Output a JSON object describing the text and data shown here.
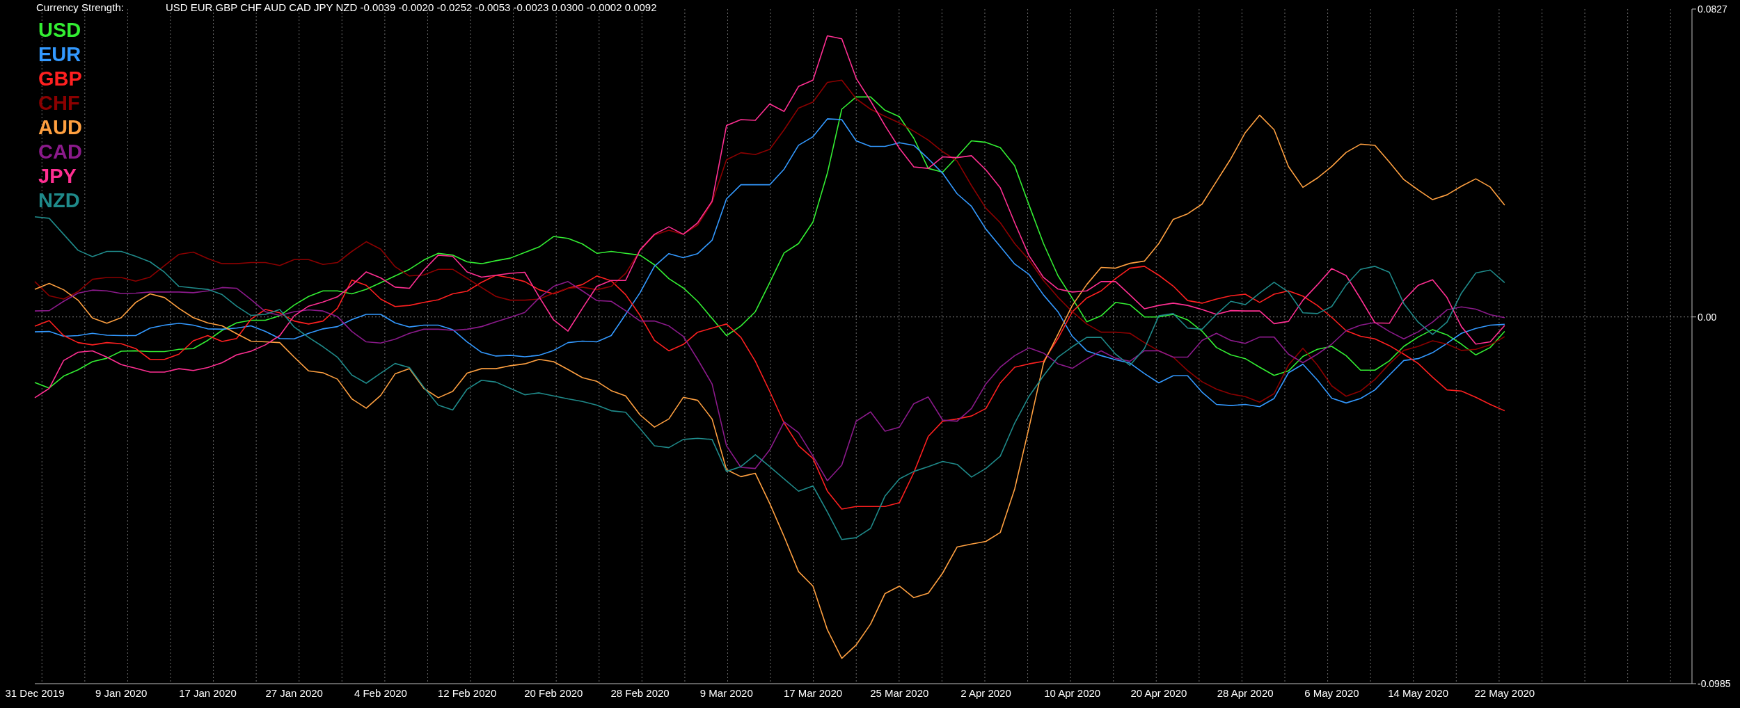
{
  "chart_data": {
    "type": "line",
    "title": "Currency Strength:",
    "subtitle": "USD EUR GBP CHF AUD CAD JPY NZD -0.0039 -0.0020 -0.0252 -0.0053 -0.0023 0.0300 -0.0002 0.0092",
    "categories": [
      "31 Dec 2019",
      null,
      null,
      null,
      null,
      null,
      "9 Jan 2020",
      null,
      null,
      null,
      null,
      null,
      "17 Jan 2020",
      null,
      null,
      null,
      null,
      null,
      "27 Jan 2020",
      null,
      null,
      null,
      null,
      null,
      "4 Feb 2020",
      null,
      null,
      null,
      null,
      null,
      "12 Feb 2020",
      null,
      null,
      null,
      null,
      null,
      "20 Feb 2020",
      null,
      null,
      null,
      null,
      null,
      "28 Feb 2020",
      null,
      null,
      null,
      null,
      null,
      "9 Mar 2020",
      null,
      null,
      null,
      null,
      null,
      "17 Mar 2020",
      null,
      null,
      null,
      null,
      null,
      "25 Mar 2020",
      null,
      null,
      null,
      null,
      null,
      "2 Apr 2020",
      null,
      null,
      null,
      null,
      null,
      "10 Apr 2020",
      null,
      null,
      null,
      null,
      null,
      "20 Apr 2020",
      null,
      null,
      null,
      null,
      null,
      "28 Apr 2020",
      null,
      null,
      null,
      null,
      null,
      "6 May 2020",
      null,
      null,
      null,
      null,
      null,
      "14 May 2020",
      null,
      null,
      null,
      null,
      null,
      "22 May 2020",
      null,
      null,
      null,
      null,
      null,
      null,
      null,
      null,
      null,
      null,
      null,
      null,
      null
    ],
    "series": [
      {
        "name": "USD",
        "color": "#33ee33",
        "values": [
          -0.0176,
          -0.0191,
          -0.0159,
          -0.0142,
          -0.012,
          -0.0111,
          -0.0092,
          -0.0091,
          -0.0093,
          -0.0093,
          -0.0087,
          -0.0085,
          -0.0063,
          -0.0036,
          -0.0016,
          -0.0009,
          -0.0009,
          0.0003,
          0.0032,
          0.0055,
          0.007,
          0.007,
          0.0062,
          0.0074,
          0.0092,
          0.011,
          0.0128,
          0.0153,
          0.0171,
          0.0166,
          0.0148,
          0.0143,
          0.0151,
          0.0158,
          0.0173,
          0.0188,
          0.0216,
          0.0211,
          0.0196,
          0.0171,
          0.0176,
          0.0171,
          0.0166,
          0.014,
          0.0103,
          0.0078,
          0.0042,
          -0.0004,
          -0.005,
          -0.0024,
          0.0014,
          0.0092,
          0.0172,
          0.0197,
          0.0255,
          0.0386,
          0.0558,
          0.0591,
          0.0591,
          0.0555,
          0.0538,
          0.048,
          0.0399,
          0.0389,
          0.043,
          0.0473,
          0.0469,
          0.0455,
          0.0406,
          0.03,
          0.0197,
          0.0111,
          0.005,
          -0.0013,
          0.0003,
          0.0039,
          0.0033,
          0.0,
          0.0,
          0.0007,
          -0.0008,
          -0.0038,
          -0.0082,
          -0.0102,
          -0.0112,
          -0.0135,
          -0.0157,
          -0.0145,
          -0.0106,
          -0.0087,
          -0.0079,
          -0.0104,
          -0.0143,
          -0.0143,
          -0.0118,
          -0.0079,
          -0.0054,
          -0.0034,
          -0.0048,
          -0.0073,
          -0.0102,
          -0.0082,
          -0.0039,
          null,
          null,
          null,
          null,
          null,
          null,
          null,
          null,
          null,
          null,
          null,
          null,
          null
        ]
      },
      {
        "name": "EUR",
        "color": "#3399ff",
        "values": [
          -0.004,
          -0.0039,
          -0.0052,
          -0.005,
          -0.0044,
          -0.0049,
          -0.005,
          -0.005,
          -0.003,
          -0.0022,
          -0.0017,
          -0.0022,
          -0.0032,
          -0.0033,
          -0.003,
          -0.0024,
          -0.0039,
          -0.0058,
          -0.0059,
          -0.0044,
          -0.0032,
          -0.0026,
          -0.0007,
          0.0007,
          0.0007,
          -0.0016,
          -0.0027,
          -0.0022,
          -0.0022,
          -0.0034,
          -0.0067,
          -0.0095,
          -0.0105,
          -0.0103,
          -0.0107,
          -0.0103,
          -0.009,
          -0.0069,
          -0.0065,
          -0.0067,
          -0.005,
          0.0007,
          0.0065,
          0.0136,
          0.017,
          0.0159,
          0.017,
          0.0206,
          0.0317,
          0.0355,
          0.0355,
          0.0355,
          0.0397,
          0.0461,
          0.0484,
          0.0532,
          0.053,
          0.0473,
          0.0458,
          0.0458,
          0.0468,
          0.0461,
          0.0425,
          0.0386,
          0.0331,
          0.0297,
          0.0236,
          0.0189,
          0.0142,
          0.0114,
          0.0059,
          0.0014,
          -0.0052,
          -0.0091,
          -0.0104,
          -0.0115,
          -0.0124,
          -0.0152,
          -0.0177,
          -0.0158,
          -0.0158,
          -0.0202,
          -0.0235,
          -0.0238,
          -0.0235,
          -0.0241,
          -0.0219,
          -0.015,
          -0.0127,
          -0.0169,
          -0.0218,
          -0.0231,
          -0.0219,
          -0.0196,
          -0.0156,
          -0.0117,
          -0.0112,
          -0.0096,
          -0.0071,
          -0.0044,
          -0.0031,
          -0.0022,
          -0.002,
          null,
          null,
          null,
          null,
          null,
          null,
          null,
          null,
          null,
          null,
          null,
          null,
          null
        ]
      },
      {
        "name": "GBP",
        "color": "#ff2020",
        "values": [
          -0.0025,
          -0.001,
          -0.005,
          -0.0069,
          -0.0075,
          -0.0069,
          -0.0072,
          -0.0085,
          -0.0114,
          -0.0114,
          -0.01,
          -0.0064,
          -0.005,
          -0.0066,
          -0.0058,
          -0.0006,
          0.002,
          0.0011,
          -0.0011,
          -0.0019,
          -0.0011,
          0.0023,
          0.0099,
          0.0085,
          0.0048,
          0.0028,
          0.0031,
          0.0039,
          0.0046,
          0.0062,
          0.0069,
          0.0093,
          0.0112,
          0.0105,
          0.0095,
          0.0073,
          0.0062,
          0.0077,
          0.0087,
          0.011,
          0.0097,
          0.006,
          0.0004,
          -0.0063,
          -0.0091,
          -0.0074,
          -0.0041,
          -0.003,
          -0.0019,
          -0.0055,
          -0.0119,
          -0.02,
          -0.0285,
          -0.0346,
          -0.038,
          -0.0468,
          -0.0516,
          -0.0509,
          -0.0509,
          -0.0509,
          -0.0499,
          -0.0418,
          -0.0321,
          -0.028,
          -0.0274,
          -0.0266,
          -0.0246,
          -0.0177,
          -0.0135,
          -0.0126,
          -0.0119,
          -0.0058,
          0.0014,
          0.0051,
          0.007,
          0.0103,
          0.0131,
          0.0136,
          0.0112,
          0.0083,
          0.0044,
          0.0037,
          0.0048,
          0.0057,
          0.0061,
          0.0039,
          0.0061,
          0.007,
          0.0056,
          0.0031,
          -0.0001,
          -0.0037,
          -0.0052,
          -0.0059,
          -0.0077,
          -0.01,
          -0.0125,
          -0.0162,
          -0.0196,
          -0.0199,
          -0.0216,
          -0.0235,
          -0.0252,
          null,
          null,
          null,
          null,
          null,
          null,
          null,
          null,
          null,
          null,
          null,
          null,
          null
        ]
      },
      {
        "name": "CHF",
        "color": "#8b0000",
        "values": [
          0.0095,
          0.0057,
          0.0048,
          0.0068,
          0.0101,
          0.0106,
          0.0106,
          0.0096,
          0.0107,
          0.0138,
          0.0168,
          0.0174,
          0.0157,
          0.0143,
          0.0143,
          0.0146,
          0.0146,
          0.0138,
          0.0154,
          0.0154,
          0.0141,
          0.0146,
          0.0176,
          0.0202,
          0.0182,
          0.0135,
          0.011,
          0.0113,
          0.0128,
          0.0128,
          0.0104,
          0.0079,
          0.0055,
          0.0045,
          0.0045,
          0.0048,
          0.0064,
          0.0077,
          0.008,
          0.0073,
          0.0082,
          0.0117,
          0.0179,
          0.022,
          0.0233,
          0.0222,
          0.0247,
          0.0308,
          0.0422,
          0.0441,
          0.0436,
          0.045,
          0.0503,
          0.0561,
          0.0577,
          0.063,
          0.0636,
          0.0586,
          0.0558,
          0.0539,
          0.0521,
          0.0499,
          0.0475,
          0.0444,
          0.0419,
          0.0353,
          0.0292,
          0.0253,
          0.0197,
          0.0153,
          0.0098,
          0.0053,
          0.0014,
          -0.0019,
          -0.0041,
          -0.0041,
          -0.0044,
          -0.0069,
          -0.0091,
          -0.0108,
          -0.0144,
          -0.0174,
          -0.0194,
          -0.0207,
          -0.0214,
          -0.0229,
          -0.0206,
          -0.0129,
          -0.0084,
          -0.0129,
          -0.0185,
          -0.0213,
          -0.0199,
          -0.0168,
          -0.0126,
          -0.009,
          -0.0079,
          -0.0064,
          -0.0073,
          -0.009,
          -0.0087,
          -0.0075,
          -0.0053,
          null,
          null,
          null,
          null,
          null,
          null,
          null,
          null,
          null,
          null,
          null,
          null,
          null
        ]
      },
      {
        "name": "AUD",
        "color": "#ffa040",
        "values": [
          0.0074,
          0.009,
          0.0073,
          0.0045,
          -0.0003,
          -0.0017,
          -0.0002,
          0.0039,
          0.0062,
          0.0052,
          0.0023,
          -0.0002,
          -0.0016,
          -0.0024,
          -0.0045,
          -0.0065,
          -0.0067,
          -0.0069,
          -0.0108,
          -0.0145,
          -0.015,
          -0.0167,
          -0.022,
          -0.0245,
          -0.0211,
          -0.0153,
          -0.0139,
          -0.0192,
          -0.0217,
          -0.02,
          -0.0151,
          -0.0139,
          -0.0139,
          -0.0131,
          -0.0126,
          -0.0114,
          -0.012,
          -0.0141,
          -0.0163,
          -0.0173,
          -0.0198,
          -0.0212,
          -0.0263,
          -0.0296,
          -0.0274,
          -0.0216,
          -0.0224,
          -0.0274,
          -0.041,
          -0.0429,
          -0.042,
          -0.0501,
          -0.059,
          -0.0684,
          -0.0723,
          -0.084,
          -0.0917,
          -0.0881,
          -0.0825,
          -0.0743,
          -0.0723,
          -0.0754,
          -0.0742,
          -0.0688,
          -0.0618,
          -0.061,
          -0.0603,
          -0.0579,
          -0.0462,
          -0.0296,
          -0.0124,
          -0.0047,
          0.0031,
          0.0087,
          0.0133,
          0.0131,
          0.0144,
          0.015,
          0.0197,
          0.0262,
          0.0277,
          0.0303,
          0.0364,
          0.0425,
          0.0495,
          0.0542,
          0.0503,
          0.0404,
          0.0348,
          0.0373,
          0.0404,
          0.0442,
          0.0464,
          0.0461,
          0.0416,
          0.0369,
          0.0341,
          0.0315,
          0.0328,
          0.0351,
          0.0371,
          0.0349,
          0.03,
          null,
          null,
          null,
          null,
          null,
          null,
          null,
          null,
          null,
          null,
          null,
          null,
          null
        ]
      },
      {
        "name": "CAD",
        "color": "#8b1a8b",
        "values": [
          0.0016,
          0.0017,
          0.0042,
          0.0064,
          0.0072,
          0.007,
          0.0063,
          0.0064,
          0.0067,
          0.0067,
          0.0067,
          0.0065,
          0.007,
          0.0079,
          0.0077,
          0.0047,
          0.0014,
          0.0004,
          0.0014,
          0.0019,
          0.0016,
          0.0001,
          -0.0039,
          -0.0067,
          -0.007,
          -0.006,
          -0.0044,
          -0.0033,
          -0.0033,
          -0.0036,
          -0.0033,
          -0.0026,
          -0.0013,
          -0.0001,
          0.0012,
          0.0051,
          0.0082,
          0.0095,
          0.007,
          0.0044,
          0.0042,
          0.0017,
          -0.0011,
          -0.0011,
          -0.0024,
          -0.0052,
          -0.0114,
          -0.018,
          -0.0346,
          -0.0404,
          -0.0407,
          -0.0357,
          -0.0282,
          -0.0311,
          -0.0374,
          -0.044,
          -0.0398,
          -0.028,
          -0.0255,
          -0.0307,
          -0.0296,
          -0.0233,
          -0.0215,
          -0.0277,
          -0.028,
          -0.0246,
          -0.018,
          -0.0135,
          -0.0104,
          -0.0083,
          -0.0097,
          -0.0126,
          -0.0138,
          -0.0113,
          -0.0091,
          -0.0111,
          -0.0119,
          -0.0091,
          -0.0091,
          -0.0108,
          -0.0108,
          -0.0063,
          -0.0044,
          -0.0063,
          -0.0071,
          -0.0054,
          -0.0054,
          -0.01,
          -0.0123,
          -0.01,
          -0.0073,
          -0.0037,
          -0.0022,
          -0.0015,
          -0.0039,
          -0.0059,
          -0.004,
          -0.0014,
          0.0019,
          0.0027,
          0.0021,
          0.0006,
          -0.0002,
          null,
          null,
          null,
          null,
          null,
          null,
          null,
          null,
          null,
          null,
          null,
          null,
          null
        ]
      },
      {
        "name": "JPY",
        "color": "#ff2f92",
        "values": [
          -0.0217,
          -0.0192,
          -0.0117,
          -0.0095,
          -0.0091,
          -0.0108,
          -0.0128,
          -0.0138,
          -0.0148,
          -0.0148,
          -0.0139,
          -0.0144,
          -0.0136,
          -0.0123,
          -0.0102,
          -0.0092,
          -0.0075,
          -0.005,
          0.0003,
          0.0029,
          0.004,
          0.0054,
          0.0085,
          0.0121,
          0.0105,
          0.008,
          0.0077,
          0.0126,
          0.0166,
          0.0163,
          0.0121,
          0.0107,
          0.0112,
          0.0117,
          0.012,
          0.0054,
          -0.0008,
          -0.0038,
          0.0023,
          0.0082,
          0.0098,
          0.0098,
          0.018,
          0.0222,
          0.0242,
          0.0222,
          0.0253,
          0.0311,
          0.0514,
          0.053,
          0.0528,
          0.0572,
          0.0552,
          0.0619,
          0.0636,
          0.0755,
          0.0747,
          0.0641,
          0.058,
          0.0514,
          0.0453,
          0.0403,
          0.0399,
          0.043,
          0.0428,
          0.0433,
          0.0395,
          0.0347,
          0.0253,
          0.0164,
          0.0106,
          0.0075,
          0.0067,
          0.007,
          0.0095,
          0.0095,
          0.0059,
          0.0022,
          0.0031,
          0.0037,
          0.0031,
          0.002,
          0.0007,
          0.0017,
          0.0016,
          0.0016,
          -0.0018,
          -0.0012,
          0.0045,
          0.0086,
          0.013,
          0.0111,
          0.0049,
          -0.0016,
          -0.0017,
          0.0045,
          0.0085,
          0.01,
          0.0052,
          -0.0026,
          -0.0073,
          -0.0067,
          -0.0023,
          null,
          null,
          null,
          null,
          null,
          null,
          null,
          null,
          null,
          null,
          null,
          null,
          null
        ]
      },
      {
        "name": "NZD",
        "color": "#1f8a8a",
        "values": [
          0.0269,
          0.0265,
          0.0222,
          0.0179,
          0.0162,
          0.0176,
          0.0176,
          0.0163,
          0.0148,
          0.012,
          0.0082,
          0.0078,
          0.0074,
          0.006,
          0.0029,
          0.0004,
          0.0007,
          0.002,
          -0.0027,
          -0.0055,
          -0.008,
          -0.0108,
          -0.0156,
          -0.0178,
          -0.0151,
          -0.0125,
          -0.0136,
          -0.0189,
          -0.0237,
          -0.025,
          -0.0194,
          -0.017,
          -0.0175,
          -0.0192,
          -0.0209,
          -0.0204,
          -0.0212,
          -0.022,
          -0.0227,
          -0.0237,
          -0.0252,
          -0.0256,
          -0.03,
          -0.0346,
          -0.0351,
          -0.0329,
          -0.0326,
          -0.0329,
          -0.0415,
          -0.0402,
          -0.037,
          -0.0402,
          -0.0435,
          -0.0468,
          -0.0454,
          -0.0524,
          -0.0598,
          -0.0593,
          -0.0568,
          -0.0481,
          -0.0435,
          -0.0415,
          -0.0402,
          -0.0388,
          -0.0396,
          -0.043,
          -0.0407,
          -0.0374,
          -0.0285,
          -0.0213,
          -0.0158,
          -0.0108,
          -0.008,
          -0.0055,
          -0.0055,
          -0.01,
          -0.013,
          -0.0085,
          0.0003,
          0.0009,
          -0.003,
          -0.0033,
          0.0007,
          0.0042,
          0.0033,
          0.0064,
          0.0093,
          0.0067,
          0.0011,
          0.0009,
          0.0028,
          0.0086,
          0.0128,
          0.0136,
          0.012,
          0.0036,
          -0.0014,
          -0.0047,
          -0.0014,
          0.0064,
          0.0118,
          0.0126,
          0.0092,
          null,
          null,
          null,
          null,
          null,
          null,
          null,
          null,
          null,
          null,
          null,
          null,
          null
        ]
      }
    ],
    "ylim": [
      -0.0985,
      0.0827
    ],
    "yticks": [
      -0.0985,
      {
        "value": 0,
        "label": "0.00"
      },
      0.0827
    ],
    "ref_lines": [
      {
        "axis": "y",
        "value": 0,
        "color": "#808080",
        "line_style": "dotted"
      }
    ],
    "grid": "x",
    "legend": "top left"
  }
}
